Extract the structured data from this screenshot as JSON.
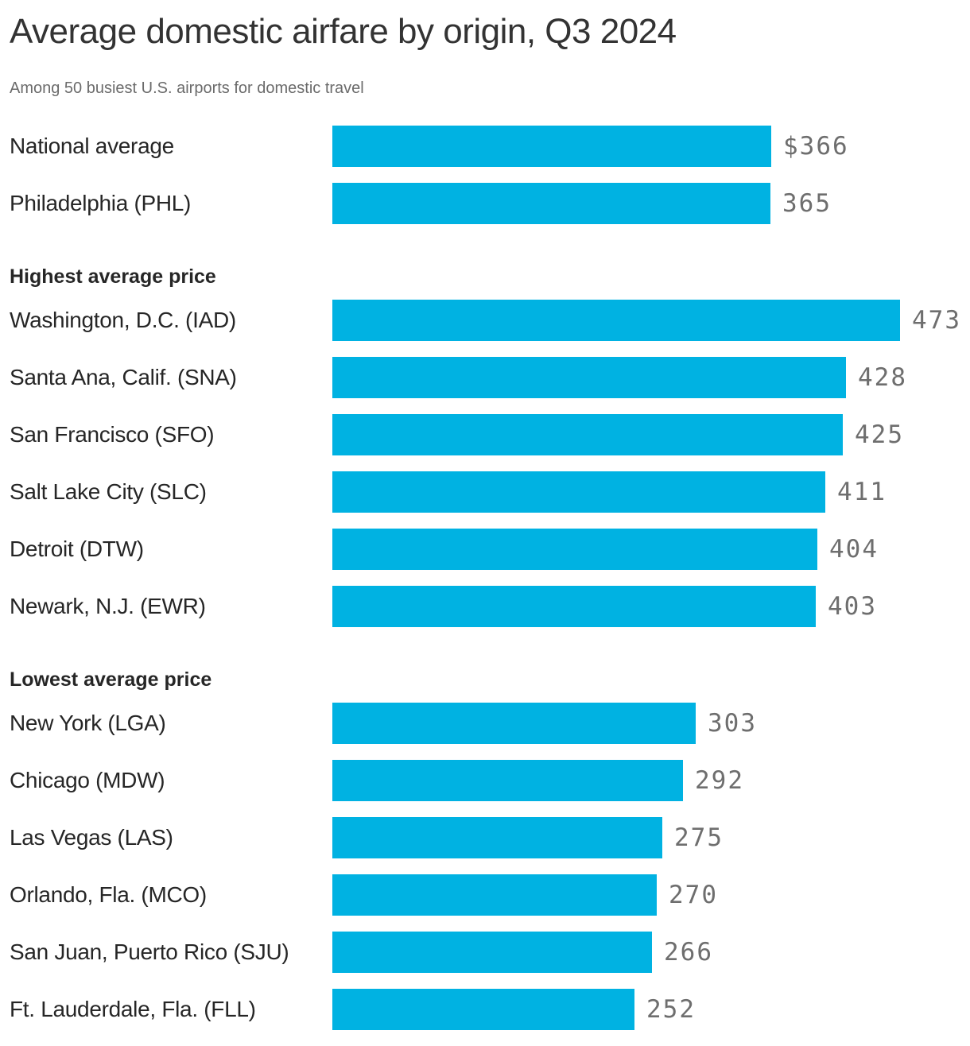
{
  "chart_data": {
    "type": "bar",
    "orientation": "horizontal",
    "title": "Average domestic airfare by origin, Q3 2024",
    "subtitle": "Among 50 busiest U.S. airports for domestic travel",
    "xlim": [
      0,
      473
    ],
    "grid": false,
    "legend": "none",
    "value_label_position": "right of bar end",
    "colors": {
      "bar": "#00b2e2",
      "title": "#333333",
      "subtitle": "#6b6b6b",
      "category_label": "#262626",
      "section_header": "#262626",
      "value_label": "#6e6e6e"
    },
    "categories": [
      "National average",
      "Philadelphia (PHL)",
      "Washington, D.C. (IAD)",
      "Santa Ana, Calif. (SNA)",
      "San Francisco (SFO)",
      "Salt Lake City (SLC)",
      "Detroit (DTW)",
      "Newark, N.J. (EWR)",
      "New York (LGA)",
      "Chicago (MDW)",
      "Las Vegas (LAS)",
      "Orlando, Fla. (MCO)",
      "San Juan, Puerto Rico (SJU)",
      "Ft. Lauderdale, Fla. (FLL)"
    ],
    "values": [
      366,
      365,
      473,
      428,
      425,
      411,
      404,
      403,
      303,
      292,
      275,
      270,
      266,
      252
    ],
    "sections": [
      {
        "header": null,
        "rows": [
          {
            "label": "National average",
            "value": 366,
            "display": "$366"
          },
          {
            "label": "Philadelphia (PHL)",
            "value": 365,
            "display": "365"
          }
        ]
      },
      {
        "header": "Highest average price",
        "rows": [
          {
            "label": "Washington, D.C. (IAD)",
            "value": 473,
            "display": "473"
          },
          {
            "label": "Santa Ana, Calif. (SNA)",
            "value": 428,
            "display": "428"
          },
          {
            "label": "San Francisco (SFO)",
            "value": 425,
            "display": "425"
          },
          {
            "label": "Salt Lake City (SLC)",
            "value": 411,
            "display": "411"
          },
          {
            "label": "Detroit (DTW)",
            "value": 404,
            "display": "404"
          },
          {
            "label": "Newark, N.J. (EWR)",
            "value": 403,
            "display": "403"
          }
        ]
      },
      {
        "header": "Lowest average price",
        "rows": [
          {
            "label": "New York (LGA)",
            "value": 303,
            "display": "303"
          },
          {
            "label": "Chicago (MDW)",
            "value": 292,
            "display": "292"
          },
          {
            "label": "Las Vegas (LAS)",
            "value": 275,
            "display": "275"
          },
          {
            "label": "Orlando, Fla. (MCO)",
            "value": 270,
            "display": "270"
          },
          {
            "label": "San Juan, Puerto Rico (SJU)",
            "value": 266,
            "display": "266"
          },
          {
            "label": "Ft. Lauderdale, Fla. (FLL)",
            "value": 252,
            "display": "252"
          }
        ]
      }
    ]
  }
}
